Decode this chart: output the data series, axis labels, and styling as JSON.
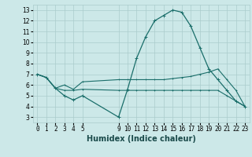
{
  "xlabel": "Humidex (Indice chaleur)",
  "ylabel": "",
  "background_color": "#cce8e8",
  "grid_color": "#aacccc",
  "line_color": "#1a6e6a",
  "xlim": [
    -0.5,
    23.5
  ],
  "ylim": [
    2.5,
    13.5
  ],
  "xtick_positions": [
    0,
    1,
    2,
    3,
    4,
    5,
    9,
    10,
    11,
    12,
    13,
    14,
    15,
    16,
    17,
    18,
    19,
    20,
    21,
    22,
    23
  ],
  "xtick_labels": [
    "0",
    "1",
    "2",
    "3",
    "4",
    "5",
    "9",
    "10",
    "11",
    "12",
    "13",
    "14",
    "15",
    "16",
    "17",
    "18",
    "19",
    "20",
    "21",
    "22",
    "23"
  ],
  "yticks": [
    3,
    4,
    5,
    6,
    7,
    8,
    9,
    10,
    11,
    12,
    13
  ],
  "line1_x": [
    0,
    1,
    2,
    3,
    4,
    5,
    9,
    10,
    11,
    12,
    13,
    14,
    15,
    16,
    17,
    18,
    19,
    20,
    21,
    22,
    23
  ],
  "line1_y": [
    7.0,
    6.7,
    5.7,
    5.0,
    4.6,
    5.0,
    3.0,
    5.6,
    8.5,
    10.5,
    12.0,
    12.5,
    13.0,
    12.8,
    11.5,
    9.5,
    7.5,
    6.5,
    5.5,
    4.5,
    4.0
  ],
  "line2_x": [
    0,
    1,
    2,
    3,
    4,
    5,
    9,
    10,
    11,
    12,
    13,
    14,
    15,
    16,
    17,
    18,
    19,
    20,
    21,
    22,
    23
  ],
  "line2_y": [
    7.0,
    6.7,
    5.7,
    6.0,
    5.6,
    6.3,
    6.5,
    6.5,
    6.5,
    6.5,
    6.5,
    6.5,
    6.6,
    6.7,
    6.8,
    7.0,
    7.2,
    7.5,
    6.5,
    5.5,
    4.0
  ],
  "line3_x": [
    0,
    1,
    2,
    3,
    4,
    5,
    9,
    10,
    11,
    12,
    13,
    14,
    15,
    16,
    17,
    18,
    19,
    20,
    21,
    22,
    23
  ],
  "line3_y": [
    7.0,
    6.7,
    5.7,
    5.5,
    5.5,
    5.6,
    5.5,
    5.5,
    5.5,
    5.5,
    5.5,
    5.5,
    5.5,
    5.5,
    5.5,
    5.5,
    5.5,
    5.5,
    5.0,
    4.5,
    4.0
  ],
  "tick_fontsize": 5.5,
  "xlabel_fontsize": 7
}
